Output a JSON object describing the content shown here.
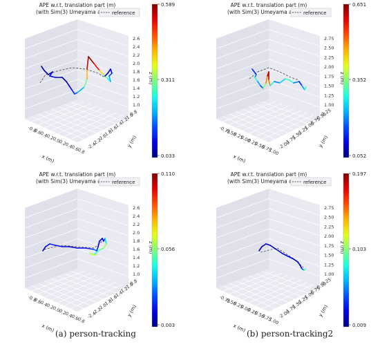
{
  "chart_data": [
    {
      "type": "line",
      "title_line1": "APE w.r.t. translation part (m)",
      "title_line2": "(with Sim(3) Umeyama ali",
      "legend": "reference",
      "xlabel": "x (m)",
      "ylabel": "y (m)",
      "zlabel": "z (m)",
      "x_ticks": [
        "-0.8",
        "0.6",
        "0.4",
        "0.2",
        "0.0",
        "0.2",
        "0.4",
        "0.6",
        "0.8"
      ],
      "y_ticks": [
        "0.8",
        "-1.0",
        "-1.2",
        "-1.4",
        "-1.6",
        "-1.8",
        "-2.0",
        "-2.2",
        "-2.4"
      ],
      "z_ticks": [
        "2.6",
        "2.4",
        "2.2",
        "2.0",
        "1.8",
        "1.6",
        "1.4",
        "1.2",
        "1.0"
      ],
      "colorbar": {
        "min": 0.033,
        "max": 0.589,
        "labels": [
          "0.589",
          "0.311",
          "0.033"
        ]
      },
      "trajectory_error": [
        0.05,
        0.06,
        0.04,
        0.08,
        0.1,
        0.07,
        0.05,
        0.06,
        0.09,
        0.12,
        0.15,
        0.2,
        0.3,
        0.42,
        0.55,
        0.58,
        0.52,
        0.4,
        0.3,
        0.25,
        0.2,
        0.15,
        0.1,
        0.08,
        0.06,
        0.05
      ]
    },
    {
      "type": "line",
      "title_line1": "APE w.r.t. translation part (m)",
      "title_line2": "(with Sim(3) Umeyama ali",
      "legend": "reference",
      "xlabel": "x (m)",
      "ylabel": "y (m)",
      "zlabel": "z (m)",
      "x_ticks": [
        "-0.75",
        "0.50",
        "0.25",
        "0.00",
        "0.25",
        "0.50",
        "0.75",
        "1.00"
      ],
      "y_ticks": [
        "0.25",
        "-0.50",
        "-0.75",
        "-1.00",
        "-1.25",
        "-1.50",
        "-1.75",
        "-2.00"
      ],
      "z_ticks": [
        "2.75",
        "2.50",
        "2.25",
        "2.00",
        "1.75",
        "1.50",
        "1.25",
        "1.00"
      ],
      "colorbar": {
        "min": 0.052,
        "max": 0.651,
        "labels": [
          "0.651",
          "0.352",
          "0.052"
        ]
      },
      "trajectory_error": [
        0.15,
        0.2,
        0.3,
        0.22,
        0.18,
        0.35,
        0.5,
        0.6,
        0.62,
        0.5,
        0.3,
        0.2,
        0.25,
        0.32,
        0.3,
        0.2,
        0.15,
        0.22,
        0.3,
        0.25
      ]
    },
    {
      "type": "line",
      "title_line1": "APE w.r.t. translation part (m)",
      "title_line2": "(with Sim(3) Umeyama ali",
      "legend": "reference",
      "xlabel": "x (m)",
      "ylabel": "y (m)",
      "zlabel": "z (m)",
      "x_ticks": [
        "-0.8",
        "0.6",
        "0.4",
        "0.2",
        "0.0",
        "0.2",
        "0.4",
        "0.6",
        "0.8"
      ],
      "y_ticks": [
        "0.8",
        "-1.0",
        "-1.2",
        "-1.4",
        "-1.6",
        "-1.8",
        "-2.0",
        "-2.2",
        "-2.4"
      ],
      "z_ticks": [
        "2.6",
        "2.4",
        "2.2",
        "2.0",
        "1.8",
        "1.6",
        "1.4",
        "1.2",
        "1.0"
      ],
      "colorbar": {
        "min": 0.003,
        "max": 0.11,
        "labels": [
          "0.110",
          "0.056",
          "0.003"
        ]
      },
      "trajectory_error": [
        0.01,
        0.015,
        0.02,
        0.018,
        0.012,
        0.01,
        0.015,
        0.02,
        0.03,
        0.02,
        0.015,
        0.012,
        0.01,
        0.02,
        0.04,
        0.06,
        0.055,
        0.045,
        0.07,
        0.06,
        0.05
      ]
    },
    {
      "type": "line",
      "title_line1": "APE w.r.t. translation part (m)",
      "title_line2": "(with Sim(3) Umeyama ali",
      "legend": "reference",
      "xlabel": "x (m)",
      "ylabel": "y (m)",
      "zlabel": "z (m)",
      "x_ticks": [
        "-0.75",
        "0.50",
        "0.25",
        "0.00",
        "0.25",
        "0.50",
        "0.75",
        "1.00"
      ],
      "y_ticks": [
        "0.25",
        "-0.50",
        "-0.75",
        "-1.00",
        "-1.25",
        "-1.50",
        "-1.75",
        "-2.00"
      ],
      "z_ticks": [
        "2.75",
        "2.50",
        "2.25",
        "2.00",
        "1.75",
        "1.50",
        "1.25",
        "1.00"
      ],
      "colorbar": {
        "min": 0.009,
        "max": 0.197,
        "labels": [
          "0.197",
          "0.103",
          "0.009"
        ]
      },
      "trajectory_error": [
        0.02,
        0.025,
        0.03,
        0.02,
        0.018,
        0.025,
        0.03,
        0.028,
        0.02,
        0.025,
        0.03,
        0.05,
        0.09,
        0.06
      ]
    }
  ],
  "captions": {
    "a": "(a) person-tracking",
    "b": "(b) person-tracking2"
  },
  "colors": {
    "pane": "#e8e9f1",
    "pane_side": "#dfe0ea",
    "grid": "#ffffff",
    "reference": "#555555"
  }
}
